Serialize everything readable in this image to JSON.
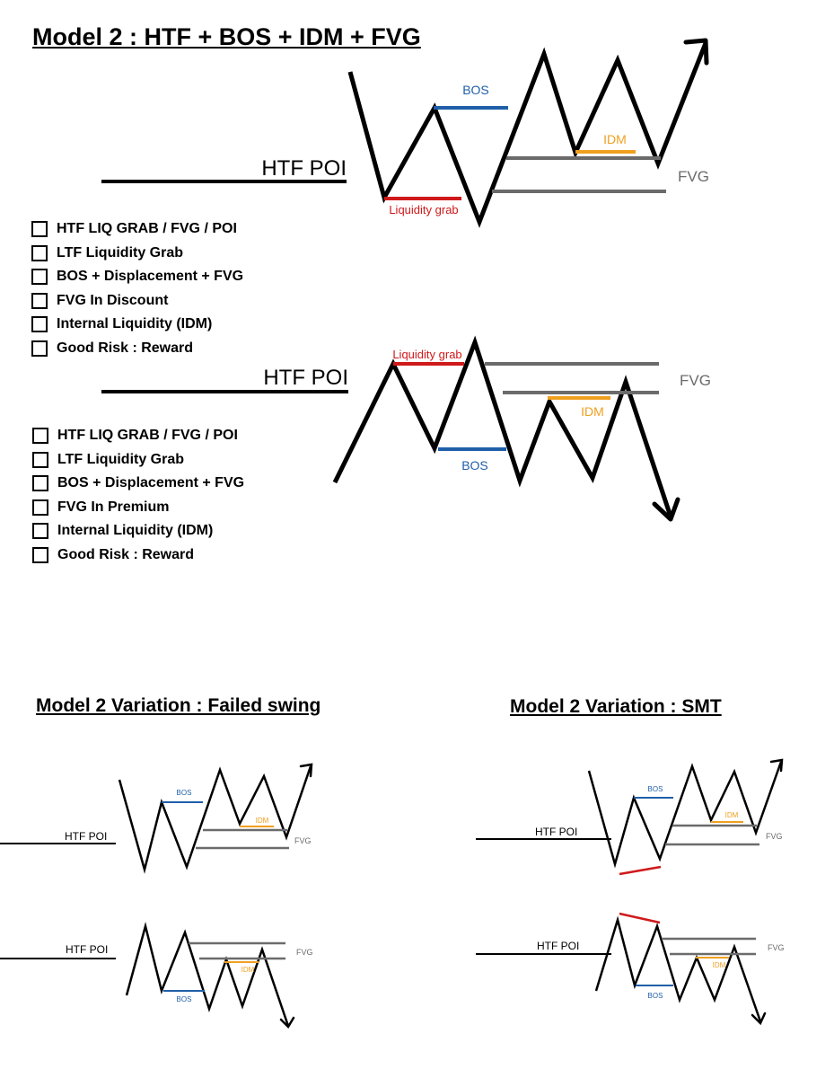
{
  "titles": {
    "main": "Model 2 : HTF + BOS + IDM + FVG",
    "failed_swing": "Model 2 Variation : Failed swing",
    "smt": "Model 2 Variation : SMT"
  },
  "labels": {
    "htf_poi": "HTF POI",
    "bos": "BOS",
    "idm": "IDM",
    "fvg": "FVG",
    "liquidity_grab": "Liquidity grab"
  },
  "colors": {
    "bos": "#1f5fa8",
    "idm": "#f0a020",
    "fvg": "#6b6b6b",
    "liquidity": "#d0191a",
    "price": "#000000"
  },
  "checklist_bullish": [
    "HTF LIQ GRAB / FVG / POI",
    "LTF Liquidity Grab",
    "BOS + Displacement + FVG",
    "FVG In Discount",
    "Internal Liquidity (IDM)",
    "Good Risk : Reward"
  ],
  "checklist_bearish": [
    "HTF LIQ GRAB / FVG / POI",
    "LTF Liquidity Grab",
    "BOS + Displacement + FVG",
    "FVG In Premium",
    "Internal Liquidity (IDM)",
    "Good Risk : Reward"
  ]
}
